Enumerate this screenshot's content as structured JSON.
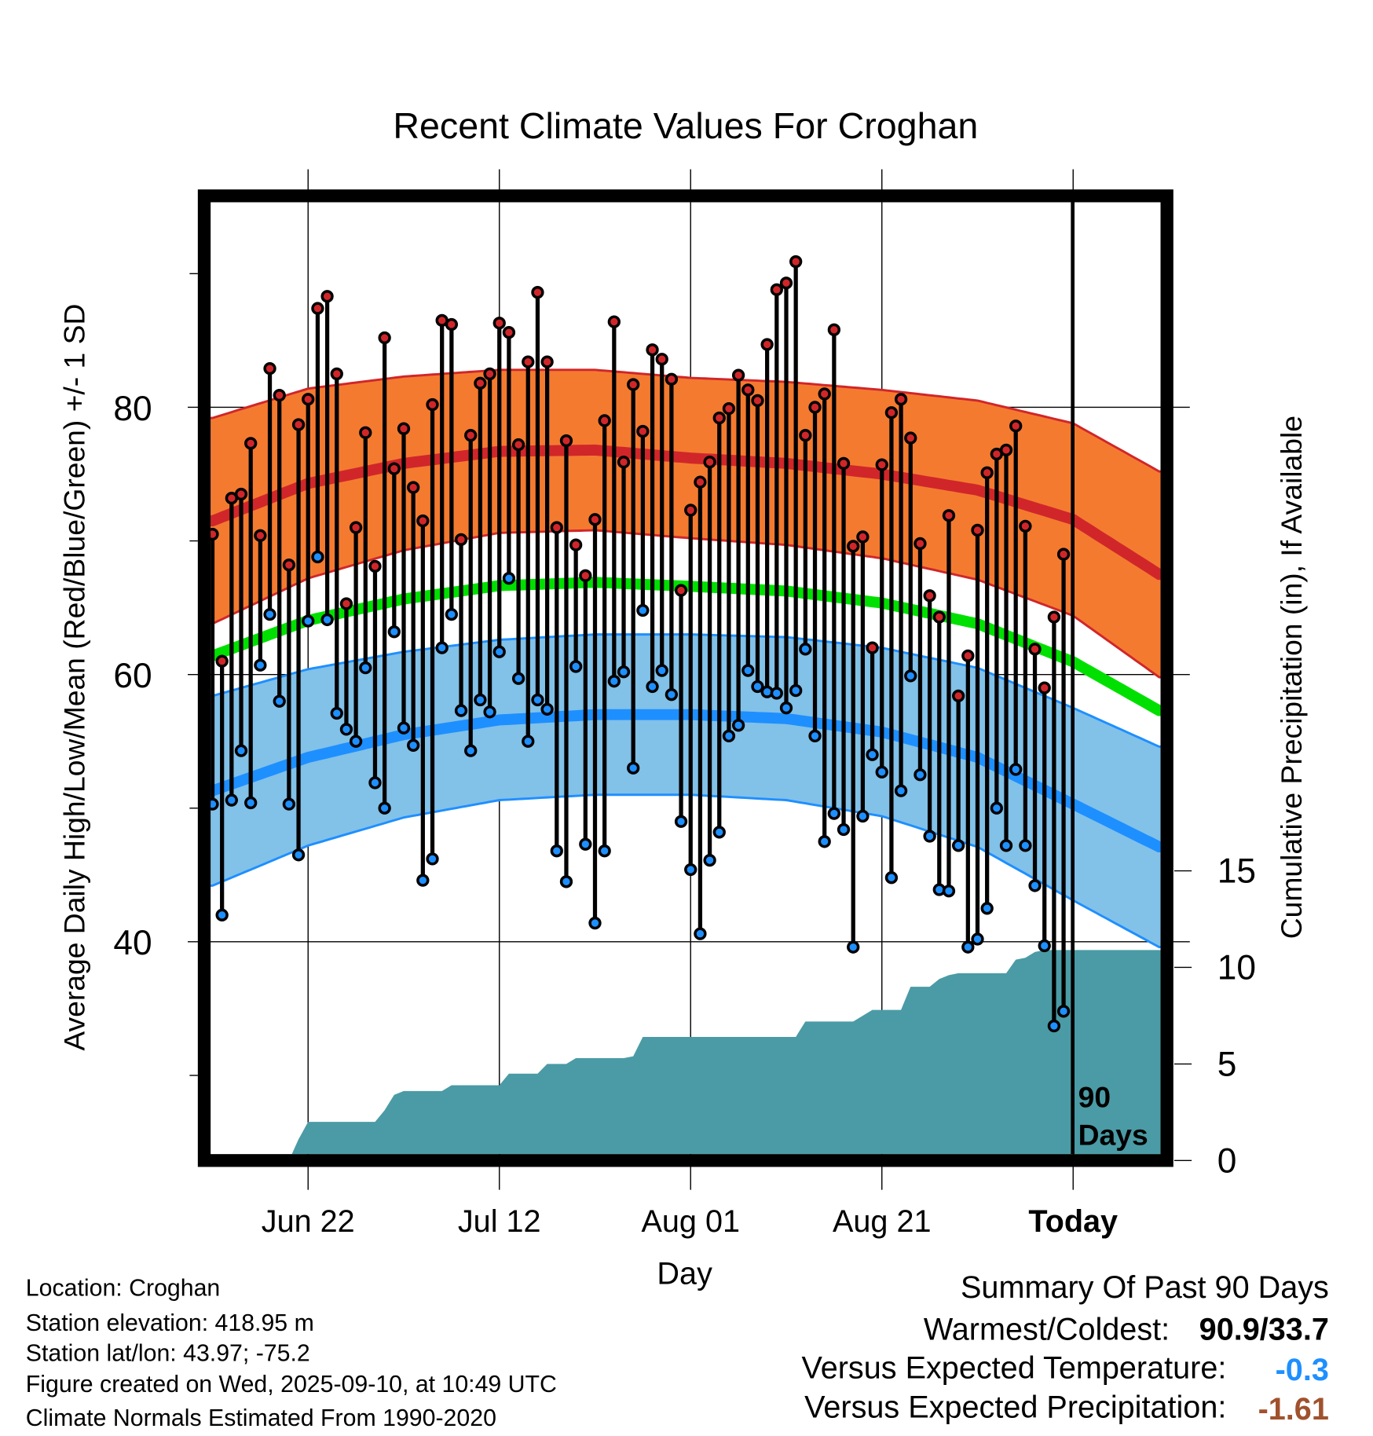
{
  "chart_data": {
    "type": "line",
    "title": "Recent Climate Values For Croghan",
    "xlabel": "Day",
    "ylabel": "Average Daily High/Low/Mean (Red/Blue/Green) +/- 1 SD",
    "y2label": "Cumulative Precipitation (in), If Available",
    "start_date": "Jun 12",
    "x_ticks": [
      {
        "day": 10,
        "label": "Jun 22"
      },
      {
        "day": 30,
        "label": "Jul 12"
      },
      {
        "day": 50,
        "label": "Aug 01"
      },
      {
        "day": 70,
        "label": "Aug 21"
      },
      {
        "day": 90,
        "label": "Today"
      }
    ],
    "xlim_days": [
      -0.2,
      99.1
    ],
    "ylim": [
      24.2,
      95.8
    ],
    "y_ticks": [
      "80",
      "60",
      "40"
    ],
    "y_tick_values": [
      80,
      60,
      40
    ],
    "y_minor_ticks": [
      90,
      70,
      50,
      30
    ],
    "y2lim": [
      0,
      50
    ],
    "y2_ticks": [
      "15",
      "10",
      "5",
      "0"
    ],
    "y2_tick_values": [
      15,
      10,
      5,
      0
    ],
    "grid": true,
    "today_day": 90,
    "today_label_line1": "90",
    "today_label_line2": "Days",
    "highs": [
      70.5,
      61,
      73.2,
      73.5,
      77.3,
      70.4,
      82.9,
      80.9,
      68.2,
      78.7,
      80.6,
      87.4,
      88.3,
      82.5,
      65.3,
      71,
      78.1,
      68.1,
      85.2,
      75.4,
      78.4,
      74,
      71.5,
      80.2,
      86.5,
      86.2,
      70.1,
      77.9,
      81.8,
      82.5,
      86.3,
      85.6,
      77.2,
      83.4,
      88.6,
      83.4,
      71,
      77.5,
      69.7,
      67.4,
      71.6,
      79,
      86.4,
      75.9,
      81.7,
      78.2,
      84.3,
      83.6,
      82.1,
      66.3,
      72.3,
      74.4,
      75.9,
      79.2,
      79.9,
      82.4,
      81.3,
      80.5,
      84.7,
      88.8,
      89.3,
      90.9,
      77.9,
      80,
      81,
      85.8,
      75.8,
      69.6,
      70.3,
      62,
      75.7,
      79.6,
      80.6,
      77.7,
      69.8,
      65.9,
      64.3,
      71.9,
      58.4,
      61.4,
      70.8,
      75.1,
      76.5,
      76.8,
      78.6,
      71.1,
      61.9,
      59,
      64.3,
      69
    ],
    "lows": [
      50.3,
      42,
      50.6,
      54.3,
      50.4,
      60.7,
      64.5,
      58,
      50.3,
      46.5,
      64,
      68.8,
      64.1,
      57.1,
      55.9,
      55,
      60.5,
      51.9,
      50,
      63.2,
      56,
      54.7,
      44.6,
      46.2,
      62,
      64.5,
      57.3,
      54.3,
      58.1,
      57.2,
      61.7,
      67.2,
      59.7,
      55,
      58.1,
      57.4,
      46.8,
      44.5,
      60.6,
      47.3,
      41.4,
      46.8,
      59.5,
      60.2,
      53,
      64.8,
      59.1,
      60.3,
      58.5,
      49,
      45.4,
      40.6,
      46.1,
      48.2,
      55.4,
      56.2,
      60.3,
      59.1,
      58.7,
      58.6,
      57.5,
      58.8,
      61.9,
      55.4,
      47.5,
      49.6,
      48.4,
      39.6,
      49.4,
      54,
      52.7,
      44.8,
      51.3,
      59.9,
      52.5,
      47.9,
      43.9,
      43.8,
      47.2,
      39.6,
      40.2,
      42.5,
      50,
      47.2,
      52.9,
      47.2,
      44.2,
      39.7,
      33.7,
      34.8
    ],
    "normals": {
      "anchor_days": [
        0,
        10,
        20,
        30,
        40,
        50,
        60,
        70,
        80,
        90,
        99
      ],
      "high_mean": [
        71.5,
        74.3,
        75.8,
        76.7,
        76.8,
        76.2,
        75.8,
        75.0,
        73.8,
        71.6,
        67.5
      ],
      "high_sd": [
        7.7,
        7.1,
        6.5,
        6.1,
        6.0,
        6.0,
        6.1,
        6.3,
        6.7,
        7.2,
        7.7
      ],
      "low_mean": [
        51.3,
        53.8,
        55.5,
        56.6,
        57.0,
        57.0,
        56.7,
        55.7,
        53.8,
        50.3,
        47.1
      ],
      "low_sd": [
        7.1,
        6.6,
        6.2,
        6.0,
        6.0,
        6.0,
        6.1,
        6.3,
        6.7,
        7.2,
        7.5
      ]
    },
    "precip_cumulative": [
      0,
      0,
      0,
      0,
      0,
      0,
      0,
      0,
      0,
      1.1,
      2.0,
      2.0,
      2.0,
      2.0,
      2.0,
      2.0,
      2.0,
      2.0,
      2.6,
      3.4,
      3.6,
      3.6,
      3.6,
      3.6,
      3.6,
      3.9,
      3.9,
      3.9,
      3.9,
      3.9,
      3.9,
      4.5,
      4.5,
      4.5,
      4.5,
      5.0,
      5.0,
      5.0,
      5.3,
      5.3,
      5.3,
      5.3,
      5.3,
      5.3,
      5.4,
      6.4,
      6.4,
      6.4,
      6.4,
      6.4,
      6.4,
      6.4,
      6.4,
      6.4,
      6.4,
      6.4,
      6.4,
      6.4,
      6.4,
      6.4,
      6.4,
      6.4,
      7.2,
      7.2,
      7.2,
      7.2,
      7.2,
      7.2,
      7.5,
      7.8,
      7.8,
      7.8,
      7.8,
      9.0,
      9.0,
      9.0,
      9.4,
      9.6,
      9.7,
      9.7,
      9.7,
      9.7,
      9.7,
      9.7,
      10.4,
      10.5,
      10.8,
      10.9,
      10.9,
      10.9
    ]
  },
  "colors": {
    "high_band": "#f47a30",
    "high_line": "#d0262a",
    "low_band": "#82c1e8",
    "low_line": "#1e8fff",
    "mean_line": "#00e000",
    "precip": "#4a9ba5",
    "high_dot": "#d0262a",
    "low_dot": "#1e8fff",
    "temp_anomaly": "#1e8fff",
    "precip_anomaly": "#a0522d"
  },
  "info": {
    "location": "Location: Croghan",
    "elevation": "Station elevation: 418.95 m",
    "latlon": "Station lat/lon: 43.97; -75.2",
    "created": "Figure created on Wed, 2025-09-10, at 10:49 UTC",
    "normals": "Climate Normals Estimated From 1990-2020"
  },
  "summary": {
    "title": "Summary Of Past 90 Days",
    "warmest_label": "Warmest/Coldest:",
    "warmest_value": "90.9/33.7",
    "temp_label": "Versus Expected Temperature:",
    "temp_value": "-0.3",
    "precip_label": "Versus Expected Precipitation:",
    "precip_value": "-1.61"
  }
}
